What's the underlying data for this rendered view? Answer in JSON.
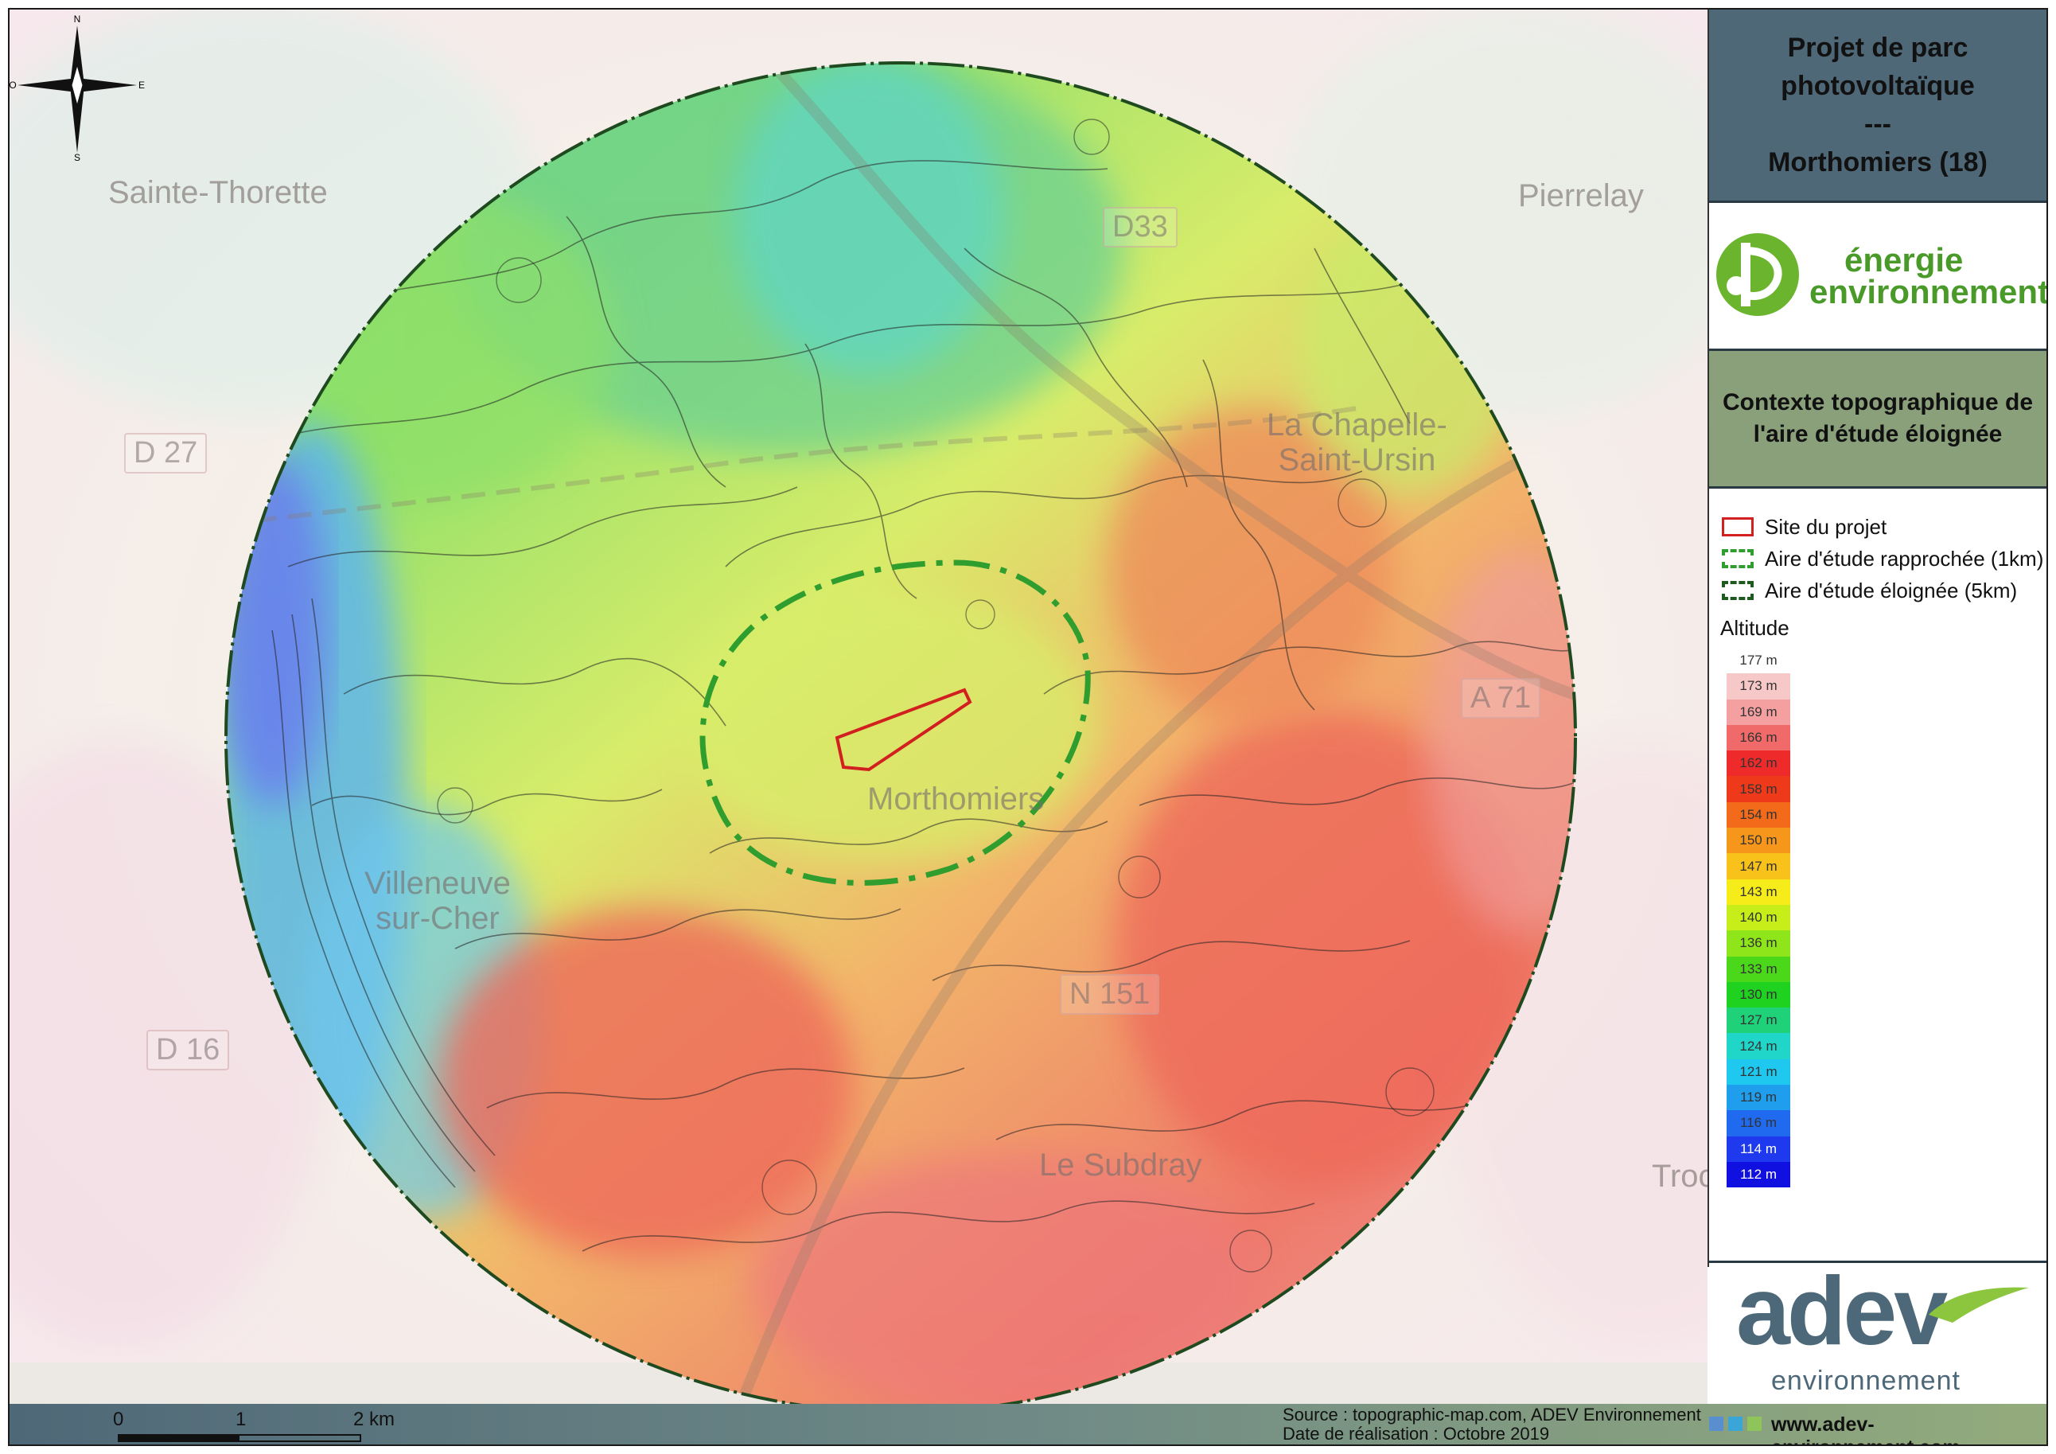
{
  "title": {
    "line1": "Projet de parc",
    "line2": "photovoltaïque",
    "line3": "---",
    "line4": "Morthomiers (18)"
  },
  "logo_top": {
    "line1": "énergie",
    "line2": "environnement"
  },
  "subtitle": {
    "line1": "Contexte topographique de",
    "line2": "l'aire d'étude éloignée"
  },
  "legend": {
    "items": [
      {
        "label": "Site du projet",
        "color": "#d21f1f",
        "style": "solid"
      },
      {
        "label": "Aire d'étude rapprochée (1km)",
        "color": "#2f9e2f",
        "style": "dash-dot"
      },
      {
        "label": "Aire d'étude éloignée (5km)",
        "color": "#1f5a1f",
        "style": "dashed"
      }
    ],
    "altitude_title": "Altitude",
    "altitude_ramp": [
      {
        "label": "177 m",
        "color": "#ffffff"
      },
      {
        "label": "173 m",
        "color": "#f7c8c8"
      },
      {
        "label": "169 m",
        "color": "#f4a0a0"
      },
      {
        "label": "166 m",
        "color": "#f06a6a"
      },
      {
        "label": "162 m",
        "color": "#ee2a2a"
      },
      {
        "label": "158 m",
        "color": "#ee3a1a"
      },
      {
        "label": "154 m",
        "color": "#f26a1a"
      },
      {
        "label": "150 m",
        "color": "#f6961a"
      },
      {
        "label": "147 m",
        "color": "#f8c21a"
      },
      {
        "label": "143 m",
        "color": "#f6ec1a"
      },
      {
        "label": "140 m",
        "color": "#c8ee1a"
      },
      {
        "label": "136 m",
        "color": "#8ee61a"
      },
      {
        "label": "133 m",
        "color": "#4cd81a"
      },
      {
        "label": "130 m",
        "color": "#1fd21f"
      },
      {
        "label": "127 m",
        "color": "#1fd27a"
      },
      {
        "label": "124 m",
        "color": "#1fd6c8"
      },
      {
        "label": "121 m",
        "color": "#1fc8ee"
      },
      {
        "label": "119 m",
        "color": "#1f9eee"
      },
      {
        "label": "116 m",
        "color": "#1f6aee"
      },
      {
        "label": "114 m",
        "color": "#1f3aee"
      },
      {
        "label": "112 m",
        "color": "#1010e0"
      }
    ]
  },
  "compass": {
    "n": "N",
    "s": "S",
    "e": "E",
    "w": "O"
  },
  "places": {
    "sainte_thorette": "Sainte-Thorette",
    "pierrelay": "Pierrelay",
    "la_chapelle_1": "La Chapelle-",
    "la_chapelle_2": "Saint-Ursin",
    "morthomiers": "Morthomiers",
    "villeneuve_1": "Villeneuve",
    "villeneuve_2": "sur-Cher",
    "le_subdray": "Le Subdray",
    "troc": "Troc"
  },
  "roads": {
    "d27": "D 27",
    "d16": "D 16",
    "d33": "D33",
    "a71": "A 71",
    "n151": "N 151"
  },
  "logo_bottom": {
    "word": "adev",
    "sub": "environnement"
  },
  "footer": {
    "scale": [
      "0",
      "1",
      "2 km"
    ],
    "source": "Source : topographic-map.com, ADEV Environnement",
    "date": "Date de réalisation : Octobre 2019",
    "website": "www.adev-environnement.com",
    "squares": [
      "#5a8fcf",
      "#3aa6d8",
      "#8fc45a"
    ]
  }
}
